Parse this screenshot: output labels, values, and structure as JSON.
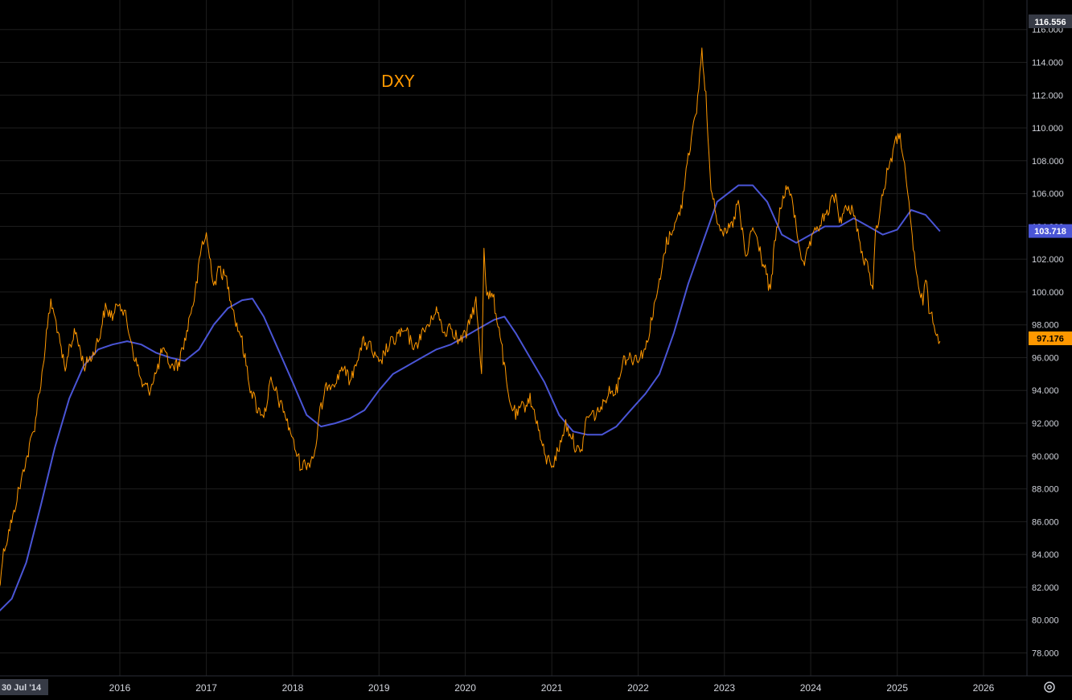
{
  "chart_data": {
    "type": "line",
    "symbol": "DXY",
    "x_start_label": "30 Jul '14",
    "year_ticks": [
      "2016",
      "2017",
      "2018",
      "2019",
      "2020",
      "2021",
      "2022",
      "2023",
      "2024",
      "2025",
      "2026"
    ],
    "y_ticks": [
      "78.000",
      "80.000",
      "82.000",
      "84.000",
      "86.000",
      "88.000",
      "90.000",
      "92.000",
      "94.000",
      "96.000",
      "98.000",
      "100.000",
      "102.000",
      "104.000",
      "106.000",
      "108.000",
      "110.000",
      "112.000",
      "114.000",
      "116.000"
    ],
    "ylim": [
      76.6,
      117.8
    ],
    "grid": true,
    "badges": {
      "top": "116.556",
      "ma_last": "103.718",
      "price_last": "97.176"
    },
    "colors": {
      "background": "#000000",
      "price": "#ff9800",
      "ma": "#4a55d6",
      "grid": "#1e1e1e",
      "axis_text": "#d1d4dc",
      "top_badge": "#363a45"
    },
    "series": [
      {
        "name": "DXY",
        "x": [
          "2014-07-30",
          "2014-09-01",
          "2014-10-01",
          "2014-11-01",
          "2014-12-01",
          "2015-01-01",
          "2015-02-01",
          "2015-03-15",
          "2015-04-15",
          "2015-05-15",
          "2015-06-01",
          "2015-07-01",
          "2015-08-01",
          "2015-09-01",
          "2015-10-01",
          "2015-11-01",
          "2015-12-01",
          "2016-01-01",
          "2016-01-25",
          "2016-02-25",
          "2016-04-01",
          "2016-05-01",
          "2016-06-01",
          "2016-07-01",
          "2016-08-01",
          "2016-09-01",
          "2016-10-01",
          "2016-11-15",
          "2016-12-15",
          "2017-01-01",
          "2017-02-01",
          "2017-03-01",
          "2017-04-01",
          "2017-05-01",
          "2017-06-01",
          "2017-07-01",
          "2017-08-01",
          "2017-09-01",
          "2017-10-01",
          "2017-11-01",
          "2017-12-01",
          "2018-01-01",
          "2018-02-01",
          "2018-03-01",
          "2018-04-01",
          "2018-05-01",
          "2018-06-01",
          "2018-07-01",
          "2018-08-01",
          "2018-09-01",
          "2018-10-01",
          "2018-11-01",
          "2018-12-01",
          "2019-01-01",
          "2019-02-01",
          "2019-03-01",
          "2019-04-01",
          "2019-05-01",
          "2019-06-01",
          "2019-07-01",
          "2019-08-01",
          "2019-09-01",
          "2019-10-01",
          "2019-11-01",
          "2019-12-01",
          "2020-01-01",
          "2020-02-15",
          "2020-03-10",
          "2020-03-20",
          "2020-04-01",
          "2020-05-01",
          "2020-06-01",
          "2020-07-01",
          "2020-08-01",
          "2020-09-01",
          "2020-10-01",
          "2020-11-01",
          "2020-12-01",
          "2021-01-05",
          "2021-02-01",
          "2021-03-01",
          "2021-04-01",
          "2021-05-01",
          "2021-06-01",
          "2021-07-01",
          "2021-08-01",
          "2021-09-01",
          "2021-10-01",
          "2021-11-01",
          "2021-12-01",
          "2022-01-01",
          "2022-02-01",
          "2022-03-01",
          "2022-04-01",
          "2022-05-01",
          "2022-06-01",
          "2022-07-01",
          "2022-08-01",
          "2022-09-01",
          "2022-09-28",
          "2022-10-15",
          "2022-11-01",
          "2022-12-01",
          "2023-01-01",
          "2023-02-01",
          "2023-03-01",
          "2023-04-01",
          "2023-05-01",
          "2023-06-01",
          "2023-07-15",
          "2023-08-01",
          "2023-09-01",
          "2023-10-01",
          "2023-11-01",
          "2023-12-01",
          "2024-01-01",
          "2024-02-01",
          "2024-03-01",
          "2024-04-15",
          "2024-05-01",
          "2024-06-01",
          "2024-07-01",
          "2024-08-01",
          "2024-09-20",
          "2024-10-01",
          "2024-11-01",
          "2024-12-01",
          "2025-01-13",
          "2025-02-01",
          "2025-03-01",
          "2025-04-01",
          "2025-04-20",
          "2025-05-01",
          "2025-05-15",
          "2025-06-01",
          "2025-06-20",
          "2025-07-01"
        ],
        "y": [
          81.2,
          84.5,
          86.0,
          88.0,
          89.8,
          91.5,
          94.5,
          99.5,
          97.5,
          95.0,
          96.8,
          97.5,
          95.5,
          96.0,
          97.0,
          99.0,
          98.5,
          99.5,
          98.5,
          96.5,
          94.5,
          94.0,
          95.0,
          96.5,
          95.5,
          95.5,
          97.0,
          100.0,
          103.0,
          103.5,
          100.5,
          101.5,
          100.5,
          98.5,
          97.0,
          94.5,
          93.0,
          92.5,
          94.5,
          93.5,
          92.5,
          91.0,
          89.5,
          89.5,
          90.0,
          93.0,
          94.5,
          94.5,
          95.5,
          94.5,
          96.0,
          97.0,
          96.5,
          95.5,
          96.5,
          97.0,
          97.5,
          97.5,
          96.5,
          97.5,
          98.0,
          99.0,
          97.5,
          98.0,
          97.0,
          97.3,
          99.5,
          95.0,
          102.8,
          100.0,
          99.5,
          97.0,
          93.5,
          92.5,
          93.0,
          93.5,
          92.0,
          90.0,
          89.5,
          90.5,
          92.0,
          91.0,
          90.0,
          92.5,
          92.5,
          93.0,
          94.0,
          94.0,
          96.0,
          96.0,
          96.0,
          96.5,
          98.5,
          100.5,
          103.0,
          104.0,
          105.0,
          108.5,
          110.5,
          114.7,
          112.0,
          107.0,
          104.5,
          103.5,
          104.0,
          105.5,
          102.0,
          104.0,
          102.5,
          100.0,
          103.0,
          105.5,
          106.5,
          104.0,
          101.5,
          103.0,
          104.0,
          104.5,
          106.0,
          104.5,
          105.0,
          105.0,
          102.5,
          100.5,
          103.5,
          106.0,
          108.0,
          109.8,
          107.5,
          104.0,
          100.0,
          99.5,
          101.0,
          99.0,
          98.5,
          97.5,
          97.0
        ]
      },
      {
        "name": "",
        "x": [
          "2014-07-30",
          "2014-10-01",
          "2014-12-01",
          "2015-02-01",
          "2015-04-01",
          "2015-06-01",
          "2015-08-01",
          "2015-10-01",
          "2015-12-01",
          "2016-02-01",
          "2016-04-01",
          "2016-06-01",
          "2016-08-01",
          "2016-10-01",
          "2016-12-01",
          "2017-02-01",
          "2017-04-01",
          "2017-06-01",
          "2017-07-15",
          "2017-09-01",
          "2017-11-01",
          "2018-01-01",
          "2018-03-01",
          "2018-05-01",
          "2018-07-01",
          "2018-09-01",
          "2018-11-01",
          "2019-01-01",
          "2019-03-01",
          "2019-05-01",
          "2019-07-01",
          "2019-09-01",
          "2019-11-01",
          "2020-01-01",
          "2020-03-01",
          "2020-05-01",
          "2020-06-15",
          "2020-08-01",
          "2020-10-01",
          "2020-12-01",
          "2021-02-01",
          "2021-04-01",
          "2021-06-01",
          "2021-08-01",
          "2021-10-01",
          "2021-12-01",
          "2022-02-01",
          "2022-04-01",
          "2022-06-01",
          "2022-08-01",
          "2022-10-01",
          "2022-12-01",
          "2023-03-01",
          "2023-05-01",
          "2023-07-01",
          "2023-09-01",
          "2023-11-01",
          "2024-01-01",
          "2024-03-01",
          "2024-05-01",
          "2024-07-01",
          "2024-09-01",
          "2024-11-01",
          "2025-01-01",
          "2025-03-01",
          "2025-05-01",
          "2025-07-01"
        ],
        "y": [
          80.4,
          81.3,
          83.5,
          87.0,
          90.5,
          93.5,
          95.5,
          96.5,
          96.8,
          97.0,
          96.8,
          96.3,
          96.0,
          95.8,
          96.5,
          98.0,
          99.0,
          99.5,
          99.6,
          98.5,
          96.5,
          94.5,
          92.5,
          91.8,
          92.0,
          92.3,
          92.8,
          94.0,
          95.0,
          95.5,
          96.0,
          96.5,
          96.8,
          97.3,
          97.8,
          98.3,
          98.5,
          97.5,
          96.0,
          94.5,
          92.5,
          91.5,
          91.3,
          91.3,
          91.8,
          92.8,
          93.8,
          95.0,
          97.5,
          100.5,
          103.0,
          105.5,
          106.5,
          106.5,
          105.5,
          103.5,
          103.0,
          103.5,
          104.0,
          104.0,
          104.5,
          104.0,
          103.5,
          103.8,
          105.0,
          104.7,
          103.7
        ]
      }
    ]
  }
}
